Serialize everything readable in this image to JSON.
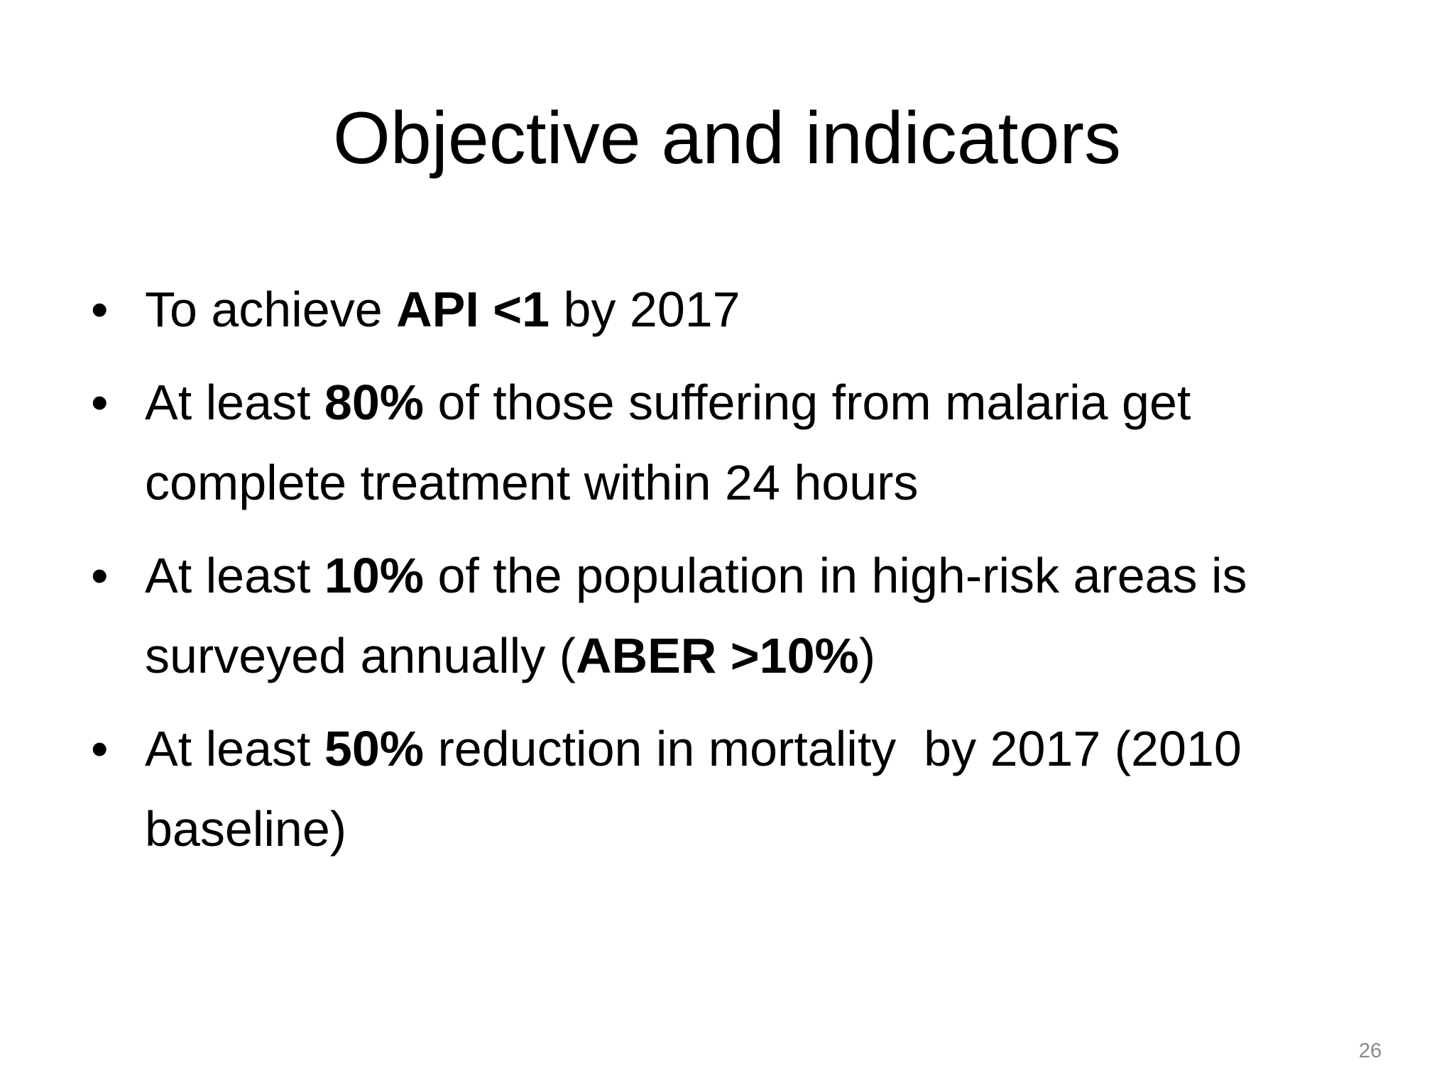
{
  "slide": {
    "title": "Objective and indicators",
    "bullets": [
      [
        {
          "text": "To achieve "
        },
        {
          "text": "API <1",
          "bold": true
        },
        {
          "text": " by 2017"
        }
      ],
      [
        {
          "text": "At least "
        },
        {
          "text": "80%",
          "bold": true
        },
        {
          "text": " of those suffering from malaria get complete treatment within 24 hours"
        }
      ],
      [
        {
          "text": "At least "
        },
        {
          "text": "10%",
          "bold": true
        },
        {
          "text": " of the population in high-risk areas is surveyed annually ("
        },
        {
          "text": "ABER >10%",
          "bold": true
        },
        {
          "text": ")"
        }
      ],
      [
        {
          "text": "At least "
        },
        {
          "text": "50%",
          "bold": true
        },
        {
          "text": " reduction in mortality  by 2017 (2010 baseline)"
        }
      ]
    ],
    "page_number": "26"
  }
}
